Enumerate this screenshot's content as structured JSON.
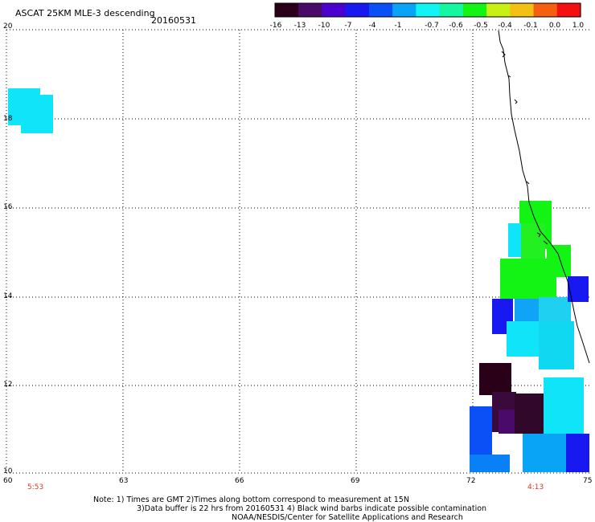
{
  "header": {
    "title": "ASCAT 25KM MLE-3 descending",
    "date": "20160531"
  },
  "colorbar": {
    "labels": [
      "-16",
      "-13",
      "-10",
      "-7",
      "-4",
      "-1",
      "-0.7",
      "-0.6",
      "-0.5",
      "-0.4",
      "-0.1",
      "0.0",
      "1.0"
    ],
    "colors": [
      "#2a0018",
      "#4a0a6a",
      "#4b00d0",
      "#1818f0",
      "#0a50f6",
      "#0aa4f6",
      "#10f4f4",
      "#14f6a0",
      "#14f414",
      "#c8f014",
      "#f4c014",
      "#f46010",
      "#f41010"
    ]
  },
  "axes": {
    "x_ticks": [
      "60",
      "63",
      "66",
      "69",
      "72",
      "75"
    ],
    "y_ticks": [
      "20",
      "18",
      "16",
      "14",
      "12",
      "10"
    ]
  },
  "times": {
    "left": "5:53",
    "right": "4:13"
  },
  "notes": {
    "line1": "Note: 1) Times are GMT 2)Times along bottom correspond to measurement at 15N",
    "line2": "3)Data buffer is 22 hrs from 20160531 4) Black wind barbs indicate possible contamination",
    "line3": "NOAA/NESDIS/Center for Satellite Applications and Research"
  }
}
